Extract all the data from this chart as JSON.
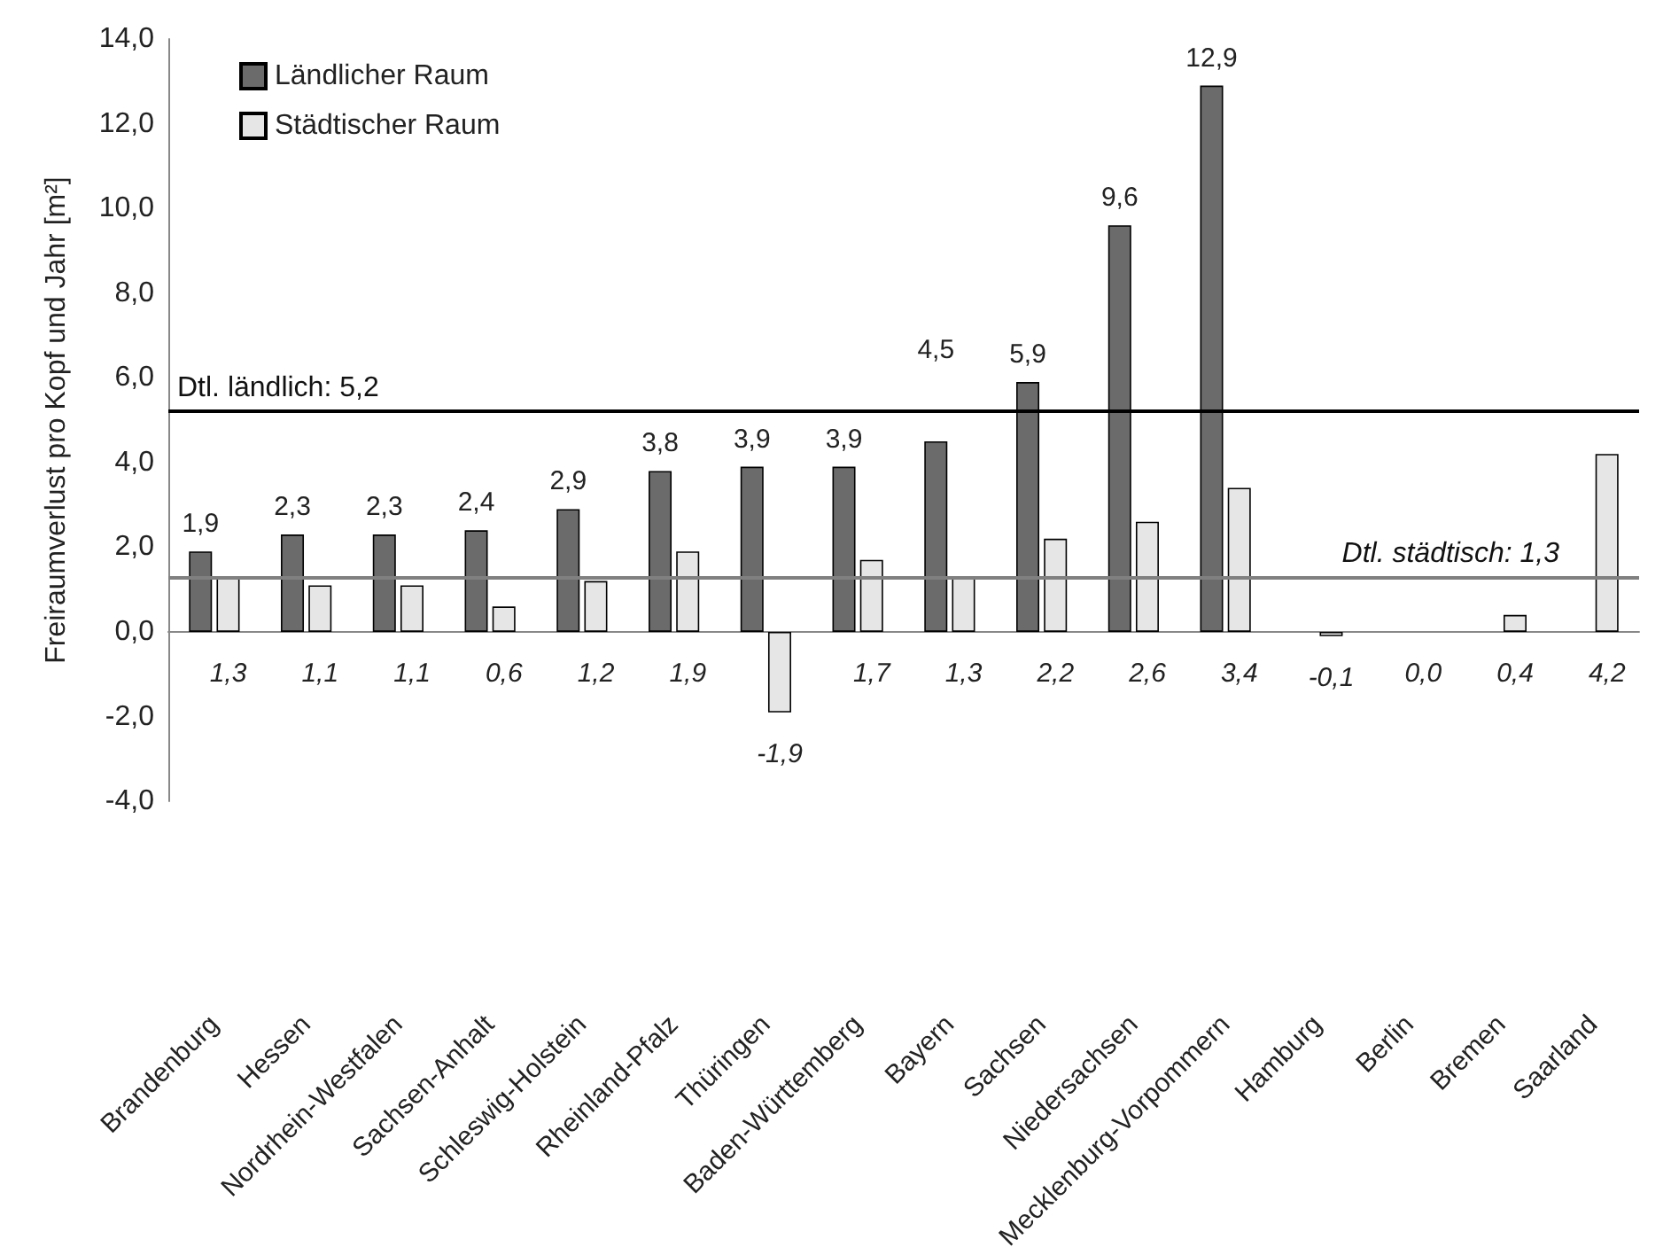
{
  "chart_data": {
    "type": "bar",
    "ylabel": "Freiraumverlust pro Kopf und Jahr [m²]",
    "categories": [
      "Brandenburg",
      "Hessen",
      "Nordrhein-Westfalen",
      "Sachsen-Anhalt",
      "Schleswig-Holstein",
      "Rheinland-Pfalz",
      "Thüringen",
      "Baden-Württemberg",
      "Bayern",
      "Sachsen",
      "Niedersachsen",
      "Mecklenburg-Vorpommern",
      "Hamburg",
      "Berlin",
      "Bremen",
      "Saarland"
    ],
    "series": [
      {
        "name": "Ländlicher Raum",
        "color": "#6b6b6b",
        "values": [
          1.9,
          2.3,
          2.3,
          2.4,
          2.9,
          3.8,
          3.9,
          3.9,
          4.5,
          5.9,
          9.6,
          12.9,
          null,
          null,
          null,
          null
        ],
        "value_labels": [
          "1,9",
          "2,3",
          "2,3",
          "2,4",
          "2,9",
          "3,8",
          "3,9",
          "3,9",
          "4,5",
          "5,9",
          "9,6",
          "12,9",
          null,
          null,
          null,
          null
        ]
      },
      {
        "name": "Städtischer Raum",
        "color": "#e6e6e6",
        "values": [
          1.3,
          1.1,
          1.1,
          0.6,
          1.2,
          1.9,
          -1.9,
          1.7,
          1.3,
          2.2,
          2.6,
          3.4,
          -0.1,
          0.0,
          0.4,
          4.2
        ],
        "value_labels": [
          "1,3",
          "1,1",
          "1,1",
          "0,6",
          "1,2",
          "1,9",
          "-1,9",
          "1,7",
          "1,3",
          "2,2",
          "2,6",
          "3,4",
          "-0,1",
          "0,0",
          "0,4",
          "4,2"
        ]
      }
    ],
    "ylim": [
      -4,
      14
    ],
    "yticks": [
      {
        "value": -4,
        "label": "-4,0"
      },
      {
        "value": -2,
        "label": "-2,0"
      },
      {
        "value": 0,
        "label": "0,0"
      },
      {
        "value": 2,
        "label": "2,0"
      },
      {
        "value": 4,
        "label": "4,0"
      },
      {
        "value": 6,
        "label": "6,0"
      },
      {
        "value": 8,
        "label": "8,0"
      },
      {
        "value": 10,
        "label": "10,0"
      },
      {
        "value": 12,
        "label": "12,0"
      },
      {
        "value": 14,
        "label": "14,0"
      }
    ],
    "ref_lines": [
      {
        "axis": "y",
        "value": 5.2,
        "label": "Dtl. ländlich: 5,2",
        "color": "#000000"
      },
      {
        "axis": "y",
        "value": 1.3,
        "label": "Dtl. städtisch: 1,3",
        "color": "#808080"
      }
    ],
    "legend": "top left"
  }
}
